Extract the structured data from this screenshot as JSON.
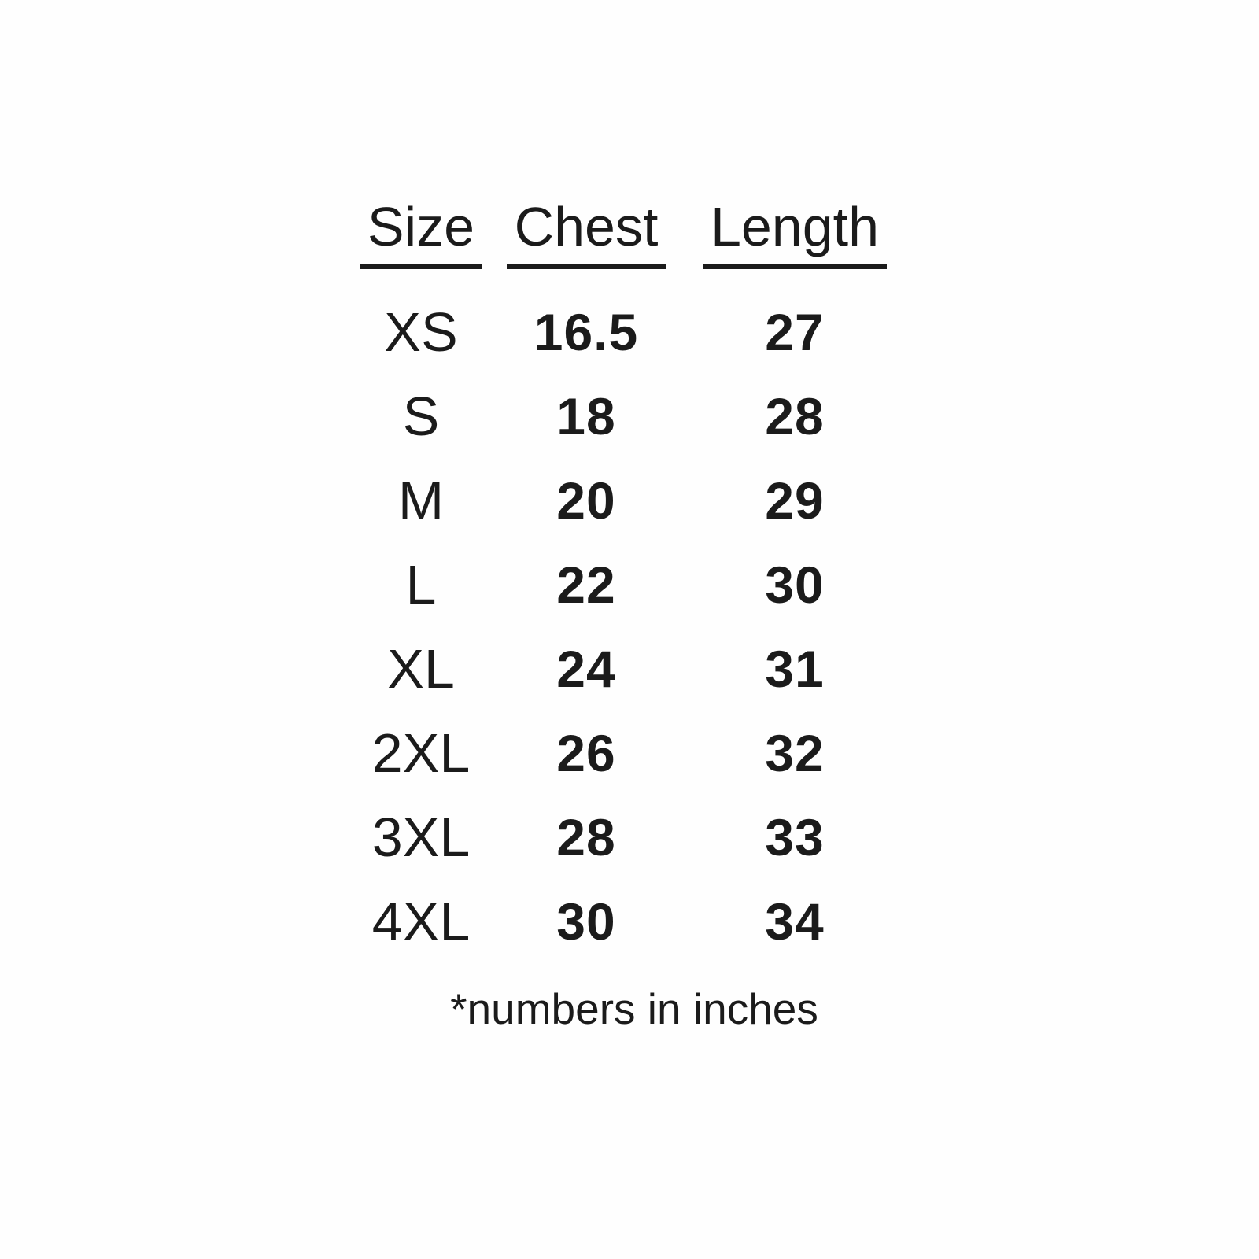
{
  "colors": {
    "text": "#1b1b1b",
    "background": "#fefefe"
  },
  "chart_data": {
    "type": "table",
    "title": "",
    "columns": [
      "Size",
      "Chest",
      "Length"
    ],
    "units": "inches",
    "rows": [
      [
        "XS",
        "16.5",
        "27"
      ],
      [
        "S",
        "18",
        "28"
      ],
      [
        "M",
        "20",
        "29"
      ],
      [
        "L",
        "22",
        "30"
      ],
      [
        "XL",
        "24",
        "31"
      ],
      [
        "2XL",
        "26",
        "32"
      ],
      [
        "3XL",
        "28",
        "33"
      ],
      [
        "4XL",
        "30",
        "34"
      ]
    ],
    "footnote": "*numbers in inches"
  }
}
